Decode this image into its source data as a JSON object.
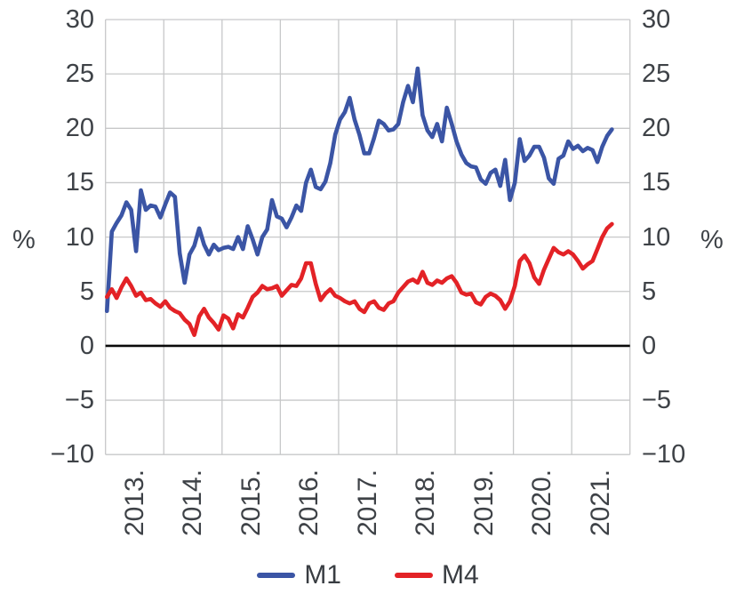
{
  "chart_data": {
    "type": "line",
    "title": "",
    "ylabel_left": "%",
    "ylabel_right": "%",
    "ylim": [
      -10,
      30
    ],
    "xlim_years": [
      2013,
      2022
    ],
    "grid": true,
    "zero_line": true,
    "legend_position": "bottom",
    "frequency": "monthly",
    "x_start": "2013-01",
    "y_ticks": [
      30,
      25,
      20,
      15,
      10,
      5,
      0,
      -5,
      -10
    ],
    "y_tick_labels": [
      "30",
      "25",
      "20",
      "15",
      "10",
      "5",
      "0",
      "−5",
      "−10"
    ],
    "x_tick_labels": [
      "2013.",
      "2014.",
      "2015.",
      "2016.",
      "2017.",
      "2018.",
      "2019.",
      "2020.",
      "2021."
    ],
    "grid_color": "#c7c8c9",
    "zero_line_color": "#0a0a0a",
    "axis_text_color": "#3e4247",
    "series": [
      {
        "name": "M1",
        "color": "#3b55a5",
        "values": [
          3.2,
          10.5,
          11.3,
          12.0,
          13.2,
          12.5,
          8.7,
          14.3,
          12.5,
          12.9,
          12.8,
          11.8,
          13.0,
          14.1,
          13.7,
          8.5,
          5.8,
          8.4,
          9.2,
          10.8,
          9.3,
          8.4,
          9.3,
          8.8,
          9.0,
          9.1,
          8.9,
          10.0,
          8.9,
          11.0,
          9.8,
          8.4,
          10.0,
          10.7,
          13.4,
          11.9,
          11.7,
          10.9,
          11.8,
          12.9,
          12.4,
          15.0,
          16.2,
          14.6,
          14.4,
          15.1,
          16.8,
          19.4,
          20.8,
          21.5,
          22.8,
          20.8,
          19.4,
          17.7,
          17.7,
          19.1,
          20.7,
          20.4,
          19.8,
          19.9,
          20.4,
          22.4,
          23.9,
          22.4,
          25.5,
          21.2,
          19.8,
          19.2,
          20.4,
          18.8,
          21.9,
          20.4,
          18.8,
          17.6,
          16.8,
          16.5,
          16.4,
          15.3,
          14.9,
          15.9,
          16.2,
          14.7,
          17.1,
          13.4,
          15.0,
          19.0,
          17.0,
          17.5,
          18.3,
          18.3,
          17.3,
          15.4,
          14.9,
          17.2,
          17.5,
          18.8,
          18.1,
          18.4,
          17.9,
          18.2,
          18.0,
          16.9,
          18.3,
          19.3,
          19.9
        ]
      },
      {
        "name": "M4",
        "color": "#e32226",
        "values": [
          4.5,
          5.2,
          4.4,
          5.4,
          6.2,
          5.5,
          4.6,
          4.9,
          4.2,
          4.3,
          3.9,
          3.6,
          4.1,
          3.5,
          3.2,
          3.0,
          2.4,
          2.0,
          1.0,
          2.7,
          3.4,
          2.6,
          2.1,
          1.5,
          2.8,
          2.5,
          1.6,
          2.9,
          2.6,
          3.5,
          4.5,
          4.9,
          5.5,
          5.2,
          5.3,
          5.5,
          4.6,
          5.1,
          5.6,
          5.5,
          6.2,
          7.6,
          7.6,
          5.7,
          4.2,
          4.8,
          5.2,
          4.6,
          4.4,
          4.1,
          3.9,
          4.1,
          3.4,
          3.1,
          3.9,
          4.1,
          3.5,
          3.3,
          3.9,
          4.1,
          4.9,
          5.4,
          5.9,
          6.1,
          5.8,
          6.8,
          5.8,
          5.6,
          6.0,
          5.8,
          6.2,
          6.4,
          5.8,
          4.9,
          4.7,
          4.8,
          4.0,
          3.8,
          4.5,
          4.8,
          4.6,
          4.2,
          3.4,
          4.1,
          5.5,
          7.8,
          8.3,
          7.6,
          6.3,
          5.7,
          7.0,
          8.0,
          9.0,
          8.6,
          8.4,
          8.7,
          8.4,
          7.8,
          7.1,
          7.5,
          7.8,
          8.9,
          10.0,
          10.8,
          11.2
        ]
      }
    ]
  }
}
